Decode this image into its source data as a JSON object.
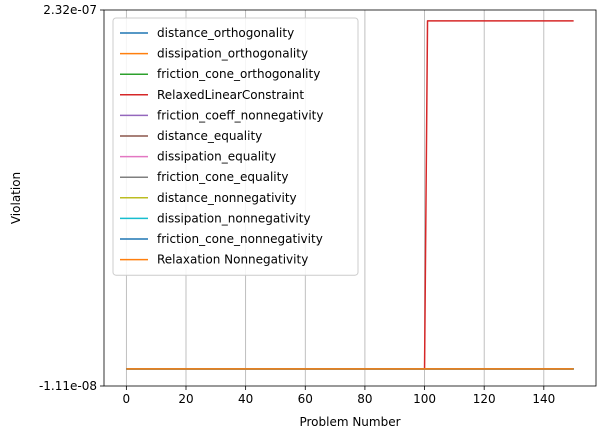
{
  "chart_data": {
    "type": "line",
    "title": "",
    "xlabel": "Problem Number",
    "ylabel": "Violation",
    "xlim": [
      -7.5,
      157.5
    ],
    "ylim": [
      -1.11e-08,
      2.32e-07
    ],
    "x_ticks": [
      0,
      20,
      40,
      60,
      80,
      100,
      120,
      140
    ],
    "x_tick_labels": [
      "0",
      "20",
      "40",
      "60",
      "80",
      "100",
      "120",
      "140"
    ],
    "y_ticks": [
      -1.11e-08,
      2.32e-07
    ],
    "y_tick_labels": [
      "-1.11e-08",
      "2.32e-07"
    ],
    "grid": "vertical",
    "legend_position": "upper-left",
    "series": [
      {
        "name": "distance_orthogonality",
        "color": "#1f77b4",
        "x": [
          0,
          150
        ],
        "y": [
          0,
          0
        ]
      },
      {
        "name": "dissipation_orthogonality",
        "color": "#ff7f0e",
        "x": [
          0,
          150
        ],
        "y": [
          0,
          0
        ]
      },
      {
        "name": "friction_cone_orthogonality",
        "color": "#2ca02c",
        "x": [
          0,
          150
        ],
        "y": [
          0,
          0
        ]
      },
      {
        "name": "RelaxedLinearConstraint",
        "color": "#d62728",
        "x": [
          0,
          100,
          101,
          150
        ],
        "y": [
          0,
          0,
          2.25e-07,
          2.25e-07
        ]
      },
      {
        "name": "friction_coeff_nonnegativity",
        "color": "#9467bd",
        "x": [
          0,
          150
        ],
        "y": [
          0,
          0
        ]
      },
      {
        "name": "distance_equality",
        "color": "#8c564b",
        "x": [
          0,
          150
        ],
        "y": [
          0,
          0
        ]
      },
      {
        "name": "dissipation_equality",
        "color": "#e377c2",
        "x": [
          0,
          150
        ],
        "y": [
          0,
          0
        ]
      },
      {
        "name": "friction_cone_equality",
        "color": "#7f7f7f",
        "x": [
          0,
          150
        ],
        "y": [
          0,
          0
        ]
      },
      {
        "name": "distance_nonnegativity",
        "color": "#bcbd22",
        "x": [
          0,
          150
        ],
        "y": [
          0,
          0
        ]
      },
      {
        "name": "dissipation_nonnegativity",
        "color": "#17becf",
        "x": [
          0,
          150
        ],
        "y": [
          0,
          0
        ]
      },
      {
        "name": "friction_cone_nonnegativity",
        "color": "#1f77b4",
        "x": [
          0,
          150
        ],
        "y": [
          0,
          0
        ]
      },
      {
        "name": "Relaxation Nonnegativity",
        "color": "#ff7f0e",
        "x": [
          0,
          150
        ],
        "y": [
          0,
          0
        ]
      }
    ]
  }
}
